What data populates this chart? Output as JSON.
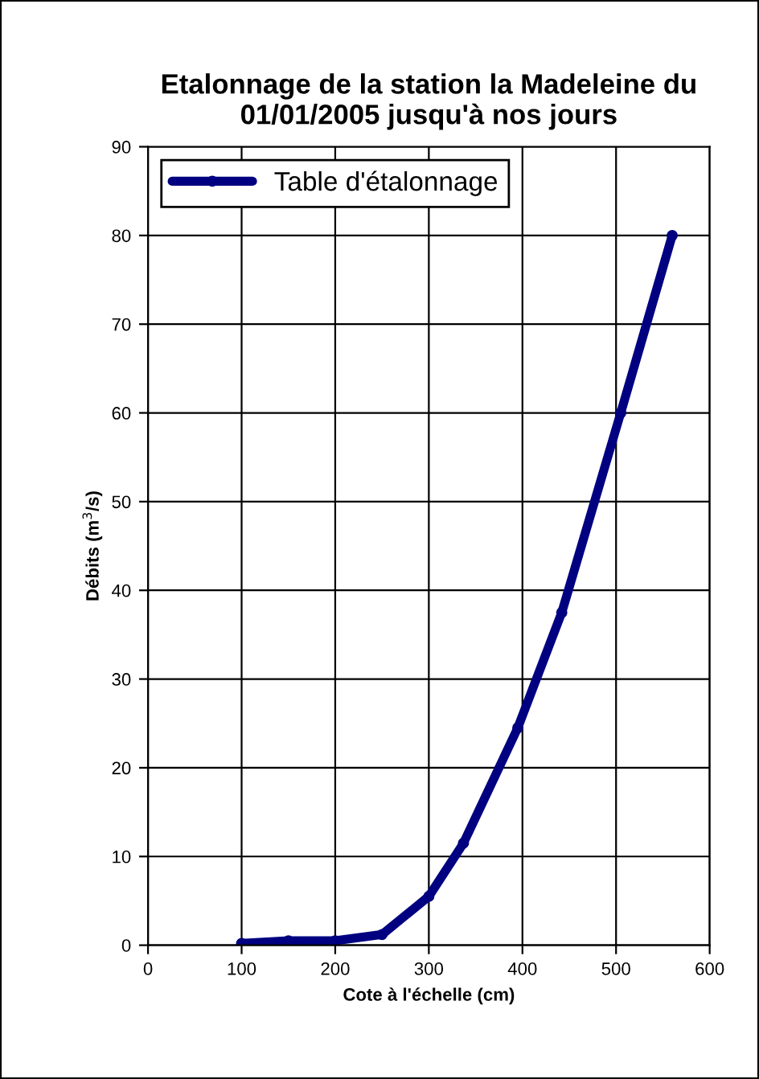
{
  "chart_data": {
    "type": "line",
    "title": "Etalonnage de la station la Madeleine du 01/01/2005 jusqu'à nos jours",
    "xlabel": "Cote à l'échelle (cm)",
    "ylabel": "Débits (m$^{3}$/s)",
    "x": [
      100,
      150,
      200,
      250,
      300,
      337,
      395,
      442,
      505,
      560
    ],
    "series": [
      {
        "name": "Table d'étalonnage",
        "color": "#000080",
        "values": [
          0.2,
          0.5,
          0.5,
          1.2,
          5.5,
          11.5,
          24.5,
          37.5,
          60,
          80
        ]
      }
    ],
    "xlim": [
      0,
      600
    ],
    "xticks": [
      0,
      100,
      200,
      300,
      400,
      500,
      600
    ],
    "ylim": [
      0,
      90
    ],
    "yticks": [
      0,
      10,
      20,
      30,
      40,
      50,
      60,
      70,
      80,
      90
    ],
    "grid": true,
    "legend": "top left",
    "marker": "circle",
    "line_style": "solid"
  }
}
